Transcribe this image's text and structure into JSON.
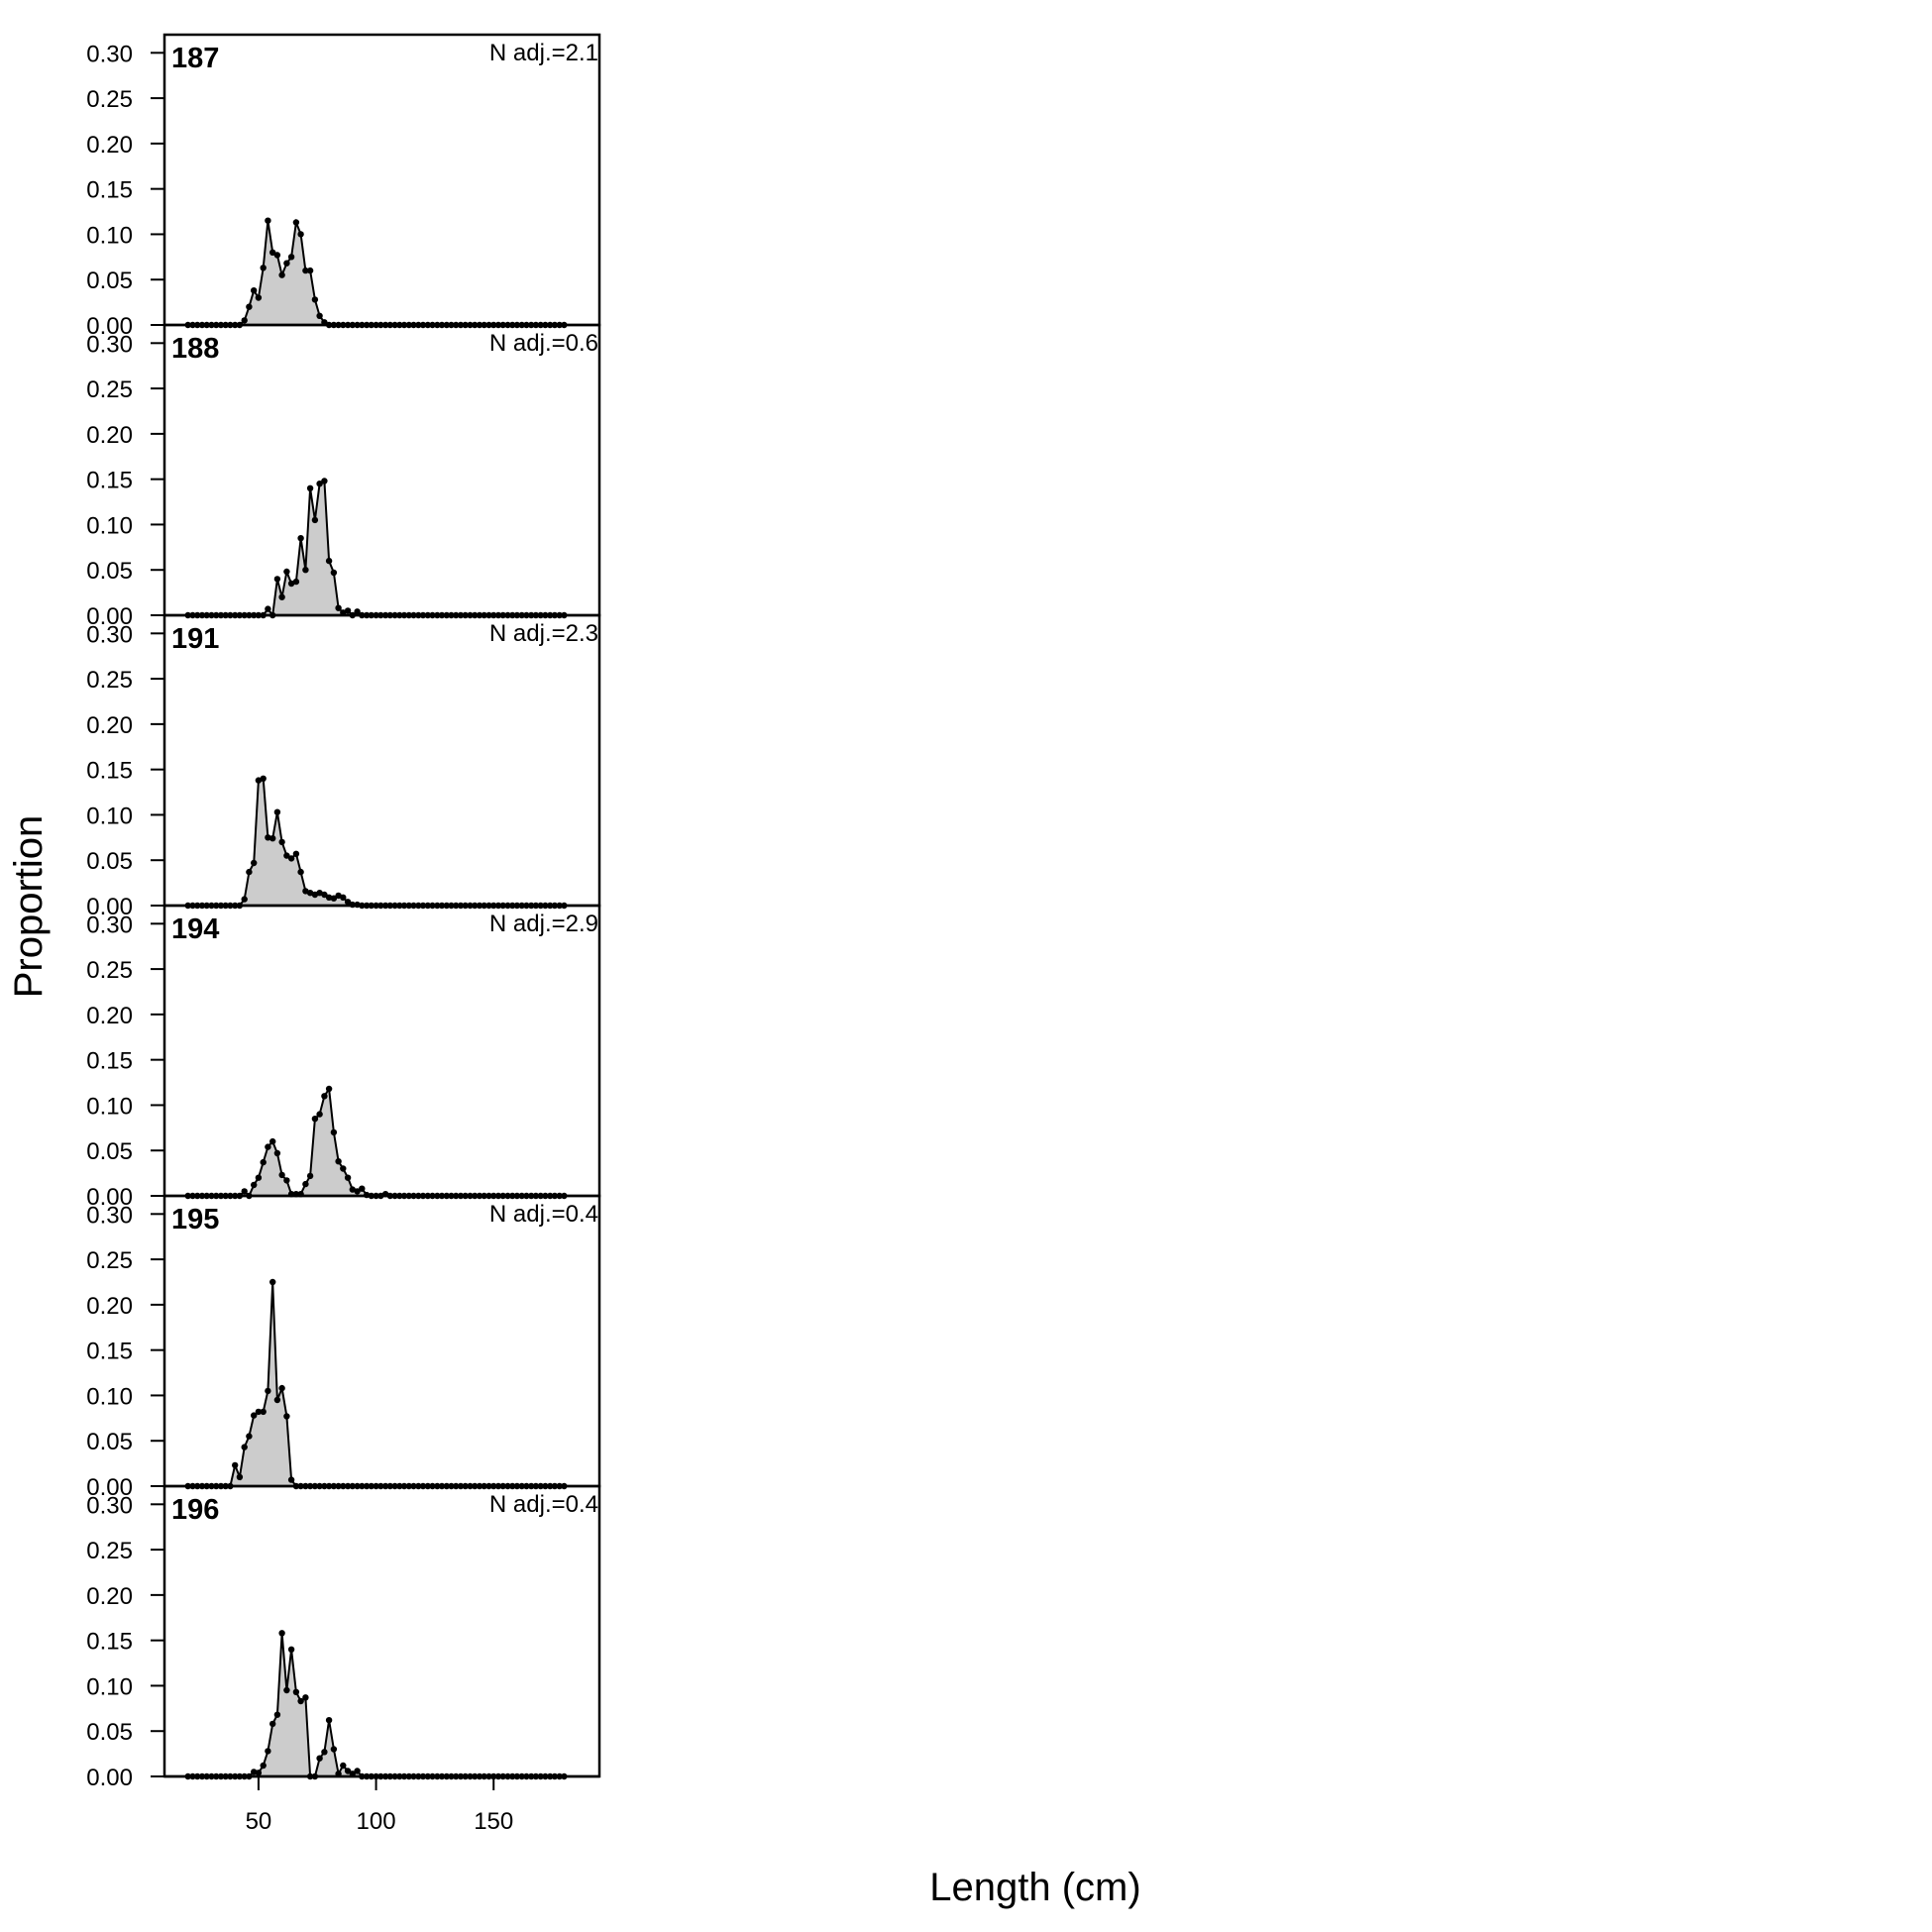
{
  "chart_data": {
    "type": "area",
    "xlabel": "Length (cm)",
    "ylabel": "Proportion",
    "xlim": [
      10,
      195
    ],
    "ylim": [
      0,
      0.32
    ],
    "x_ticks": [
      50,
      100,
      150
    ],
    "y_ticks": [
      0.0,
      0.05,
      0.1,
      0.15,
      0.2,
      0.25,
      0.3
    ],
    "y_tick_labels": [
      "0.00",
      "0.05",
      "0.10",
      "0.15",
      "0.20",
      "0.25",
      "0.30"
    ],
    "grid": false,
    "fill_color": "#cccccc",
    "line_color": "#000000",
    "x_start": 20,
    "x_step": 2,
    "panels": [
      {
        "label": "187",
        "note": "N adj.=2.1",
        "values": [
          0,
          0,
          0,
          0,
          0,
          0,
          0,
          0,
          0,
          0,
          0,
          0,
          0.005,
          0.02,
          0.038,
          0.03,
          0.063,
          0.115,
          0.08,
          0.077,
          0.055,
          0.068,
          0.075,
          0.113,
          0.1,
          0.06,
          0.06,
          0.028,
          0.01,
          0.003,
          0,
          0,
          0,
          0,
          0,
          0,
          0,
          0,
          0,
          0,
          0,
          0,
          0,
          0,
          0,
          0,
          0,
          0,
          0,
          0,
          0,
          0,
          0,
          0,
          0,
          0,
          0,
          0,
          0,
          0,
          0,
          0,
          0,
          0,
          0,
          0,
          0,
          0,
          0,
          0,
          0,
          0,
          0,
          0,
          0,
          0,
          0,
          0,
          0,
          0,
          0
        ]
      },
      {
        "label": "188",
        "note": "N adj.=0.6",
        "values": [
          0,
          0,
          0,
          0,
          0,
          0,
          0,
          0,
          0,
          0,
          0,
          0,
          0,
          0,
          0,
          0,
          0,
          0.007,
          0,
          0.04,
          0.02,
          0.048,
          0.035,
          0.037,
          0.085,
          0.05,
          0.14,
          0.105,
          0.145,
          0.148,
          0.06,
          0.047,
          0.008,
          0.003,
          0.005,
          0,
          0.004,
          0,
          0,
          0,
          0,
          0,
          0,
          0,
          0,
          0,
          0,
          0,
          0,
          0,
          0,
          0,
          0,
          0,
          0,
          0,
          0,
          0,
          0,
          0,
          0,
          0,
          0,
          0,
          0,
          0,
          0,
          0,
          0,
          0,
          0,
          0,
          0,
          0,
          0,
          0,
          0,
          0,
          0,
          0,
          0
        ]
      },
      {
        "label": "191",
        "note": "N adj.=2.3",
        "values": [
          0,
          0,
          0,
          0,
          0,
          0,
          0,
          0,
          0,
          0,
          0,
          0,
          0.007,
          0.037,
          0.047,
          0.138,
          0.14,
          0.075,
          0.074,
          0.103,
          0.07,
          0.055,
          0.052,
          0.057,
          0.037,
          0.016,
          0.014,
          0.012,
          0.014,
          0.012,
          0.009,
          0.008,
          0.011,
          0.009,
          0.004,
          0.001,
          0.001,
          0,
          0,
          0,
          0,
          0,
          0,
          0,
          0,
          0,
          0,
          0,
          0,
          0,
          0,
          0,
          0,
          0,
          0,
          0,
          0,
          0,
          0,
          0,
          0,
          0,
          0,
          0,
          0,
          0,
          0,
          0,
          0,
          0,
          0,
          0,
          0,
          0,
          0,
          0,
          0,
          0,
          0,
          0,
          0
        ]
      },
      {
        "label": "194",
        "note": "N adj.=2.9",
        "values": [
          0,
          0,
          0,
          0,
          0,
          0,
          0,
          0,
          0,
          0,
          0,
          0,
          0.005,
          0,
          0.012,
          0.02,
          0.037,
          0.054,
          0.06,
          0.047,
          0.023,
          0.017,
          0.002,
          0.002,
          0.002,
          0.013,
          0.022,
          0.085,
          0.09,
          0.11,
          0.118,
          0.07,
          0.038,
          0.03,
          0.02,
          0.007,
          0.005,
          0.008,
          0.001,
          0,
          0,
          0,
          0.002,
          0,
          0,
          0,
          0,
          0,
          0,
          0,
          0,
          0,
          0,
          0,
          0,
          0,
          0,
          0,
          0,
          0,
          0,
          0,
          0,
          0,
          0,
          0,
          0,
          0,
          0,
          0,
          0,
          0,
          0,
          0,
          0,
          0,
          0,
          0,
          0,
          0,
          0
        ]
      },
      {
        "label": "195",
        "note": "N adj.=0.4",
        "values": [
          0,
          0,
          0,
          0,
          0,
          0,
          0,
          0,
          0,
          0,
          0.023,
          0.01,
          0.043,
          0.055,
          0.078,
          0.082,
          0.082,
          0.105,
          0.225,
          0.095,
          0.108,
          0.077,
          0.007,
          0,
          0,
          0,
          0,
          0,
          0,
          0,
          0,
          0,
          0,
          0,
          0,
          0,
          0,
          0,
          0,
          0,
          0,
          0,
          0,
          0,
          0,
          0,
          0,
          0,
          0,
          0,
          0,
          0,
          0,
          0,
          0,
          0,
          0,
          0,
          0,
          0,
          0,
          0,
          0,
          0,
          0,
          0,
          0,
          0,
          0,
          0,
          0,
          0,
          0,
          0,
          0,
          0,
          0,
          0,
          0,
          0,
          0
        ]
      },
      {
        "label": "196",
        "note": "N adj.=0.4",
        "values": [
          0,
          0,
          0,
          0,
          0,
          0,
          0,
          0,
          0,
          0,
          0,
          0,
          0,
          0,
          0.005,
          0.004,
          0.012,
          0.028,
          0.058,
          0.068,
          0.158,
          0.095,
          0.14,
          0.093,
          0.083,
          0.087,
          0,
          0,
          0.02,
          0.027,
          0.062,
          0.03,
          0.003,
          0.012,
          0.006,
          0.003,
          0.006,
          0,
          0,
          0,
          0,
          0,
          0,
          0,
          0,
          0,
          0,
          0,
          0,
          0,
          0,
          0,
          0,
          0,
          0,
          0,
          0,
          0,
          0,
          0,
          0,
          0,
          0,
          0,
          0,
          0,
          0,
          0,
          0,
          0,
          0,
          0,
          0,
          0,
          0,
          0,
          0,
          0,
          0,
          0,
          0
        ]
      }
    ]
  }
}
